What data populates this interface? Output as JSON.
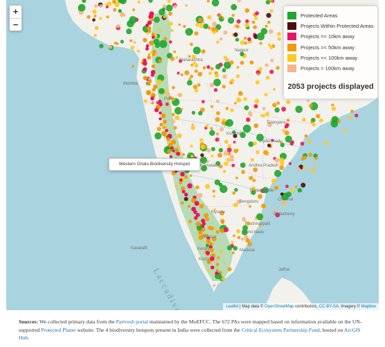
{
  "zoom": {
    "in_label": "+",
    "out_label": "−"
  },
  "legend": {
    "items": [
      {
        "label": "Protected Areas",
        "color": "#20a52d"
      },
      {
        "label": "Projects Within Protected Areas",
        "color": "#4a0f0b"
      },
      {
        "label": "Projects =< 10km away",
        "color": "#e8175d"
      },
      {
        "label": "Projects =< 50km away",
        "color": "#f09a0a"
      },
      {
        "label": "Projects =< 100km away",
        "color": "#ffc81e"
      },
      {
        "label": "Projects > 100km away",
        "color": "#f7b48b"
      }
    ],
    "total": "2053 projects displayed"
  },
  "tooltip": "Western Ghats Biodiversity Hotspot",
  "map_labels": {
    "mumbai": "Mumbai",
    "hyderabad": "Hyderabad",
    "madanapalle": "Madanapalle",
    "mysuru": "Mysuru",
    "chennai": "Chennai",
    "bengaluru": "Bengaluru",
    "jaffna": "Jaffna",
    "kochi": "Kochi",
    "madurai": "Madurai",
    "thrissur": "Thrissur",
    "tiruchirappalli": "Tiruchirappalli",
    "puducherry": "Puducherry",
    "karnataka": "Karnataka",
    "tamil_nadu": "Tamil Nadu",
    "andhra": "Andhra Pradesh",
    "telangana": "Telangana",
    "kerala": "Kerala",
    "goa": "Goa",
    "maharashtra": "Maharashtra",
    "nagpur": "Nagpur",
    "pune": "Pune",
    "kurnool": "Kurnool",
    "kavaratti": "Kavaratti",
    "laccadive_sea": "Laccadive"
  },
  "attribution": {
    "leaflet": "Leaflet",
    "sep1": " | Map data © ",
    "osm": "OpenStreetMap",
    "sep2": " contributors, ",
    "ccbysa": "CC-BY-SA",
    "sep3": ", Imagery © ",
    "mapbox": "Mapbox"
  },
  "sources": {
    "label": "Sources:",
    "t1": " We collected primary data from the ",
    "link1": "Parivesh portal",
    "t2": " maintained by the MoEFCC. The 672 PAs were mapped based on information available on the UN-supported ",
    "link2": "Protected Planet",
    "t3": " website. The 4 biodiversity hotspots present in India were collected from the ",
    "link3": "Critical Ecosystem Partnership Fund",
    "t4": ", hosted on ",
    "link4": "ArcGIS Hub",
    "t5": "."
  }
}
